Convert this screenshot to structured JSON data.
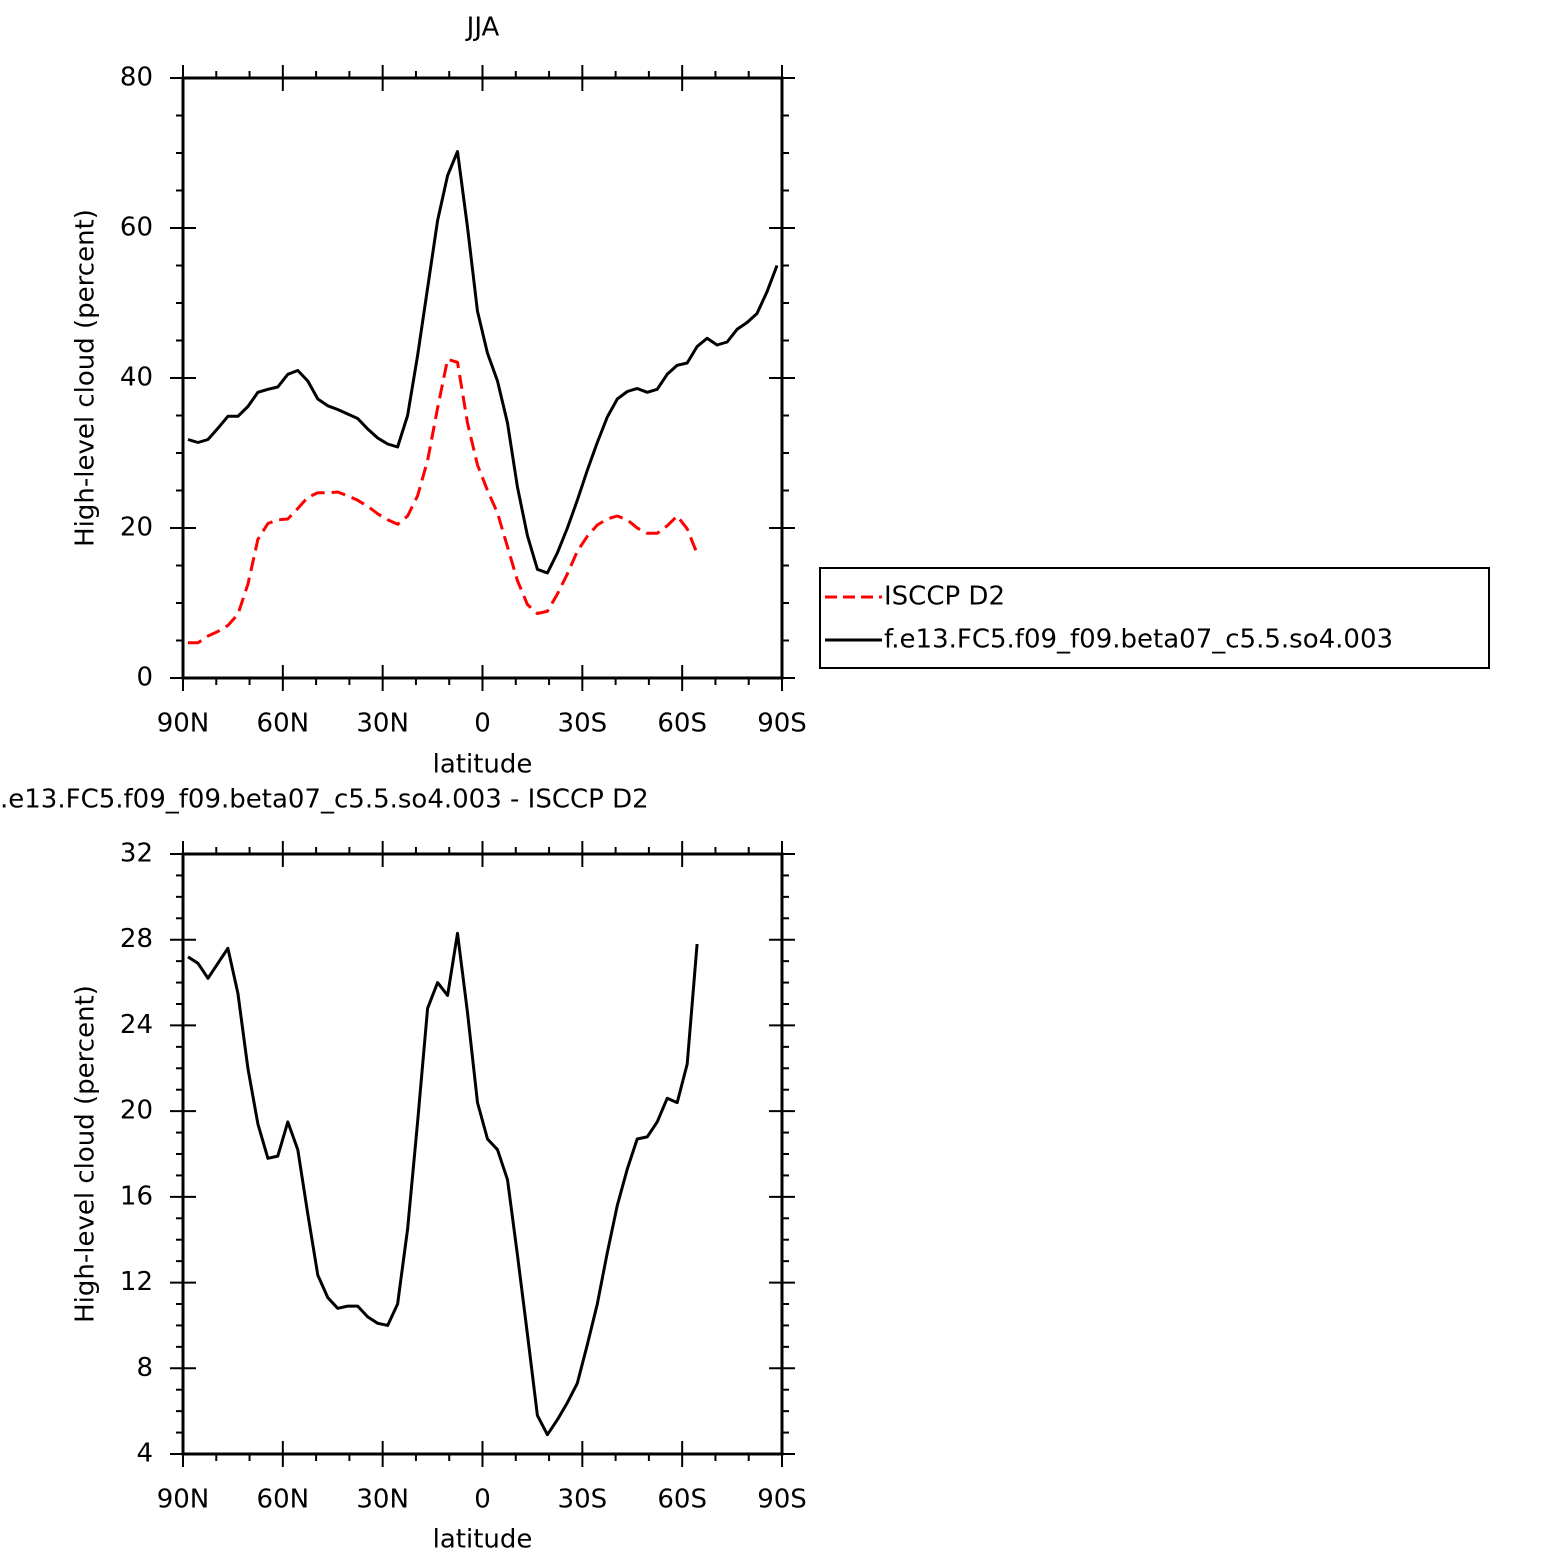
{
  "chart_data": [
    {
      "type": "line",
      "title": "JJA",
      "xlabel": "latitude",
      "ylabel": "High-level cloud (percent)",
      "x": [
        88.5,
        85.5,
        82.5,
        79.5,
        76.5,
        73.5,
        70.5,
        67.5,
        64.5,
        61.5,
        58.5,
        55.5,
        52.5,
        49.5,
        46.5,
        43.5,
        40.5,
        37.5,
        34.5,
        31.5,
        28.5,
        25.5,
        22.5,
        19.5,
        16.5,
        13.5,
        10.5,
        7.5,
        4.5,
        1.5,
        -1.5,
        -4.5,
        -7.5,
        -10.5,
        -13.5,
        -16.5,
        -19.5,
        -22.5,
        -25.5,
        -28.5,
        -31.5,
        -34.5,
        -37.5,
        -40.5,
        -43.5,
        -46.5,
        -49.5,
        -52.5,
        -55.5,
        -58.5,
        -61.5,
        -64.5,
        -67.5,
        -70.5,
        -73.5,
        -76.5,
        -79.5,
        -82.5,
        -85.5,
        -88.5
      ],
      "series": [
        {
          "name": "ISCCP D2",
          "color": "#ff0000",
          "dash": true,
          "values": [
            4.7,
            4.7,
            5.6,
            6.2,
            7.0,
            8.5,
            12.5,
            18.5,
            20.6,
            21.1,
            21.2,
            22.6,
            24.1,
            24.7,
            24.7,
            24.8,
            24.3,
            23.7,
            22.9,
            21.9,
            21.1,
            20.5,
            21.6,
            24.3,
            29,
            36,
            42.5,
            42.1,
            34,
            28.4,
            25,
            22,
            17.5,
            13,
            9.8,
            8.6,
            8.9,
            11.2,
            13.9,
            16.9,
            18.9,
            20.4,
            21.2,
            21.6,
            21.1,
            20,
            19.3,
            19.3,
            20.3,
            21.6,
            19.9,
            16.6,
            null,
            null,
            null,
            null,
            null,
            null,
            null,
            null
          ]
        },
        {
          "name": "f.e13.FC5.f09_f09.beta07_c5.5.so4.003",
          "color": "#000000",
          "dash": false,
          "values": [
            31.8,
            31.4,
            31.8,
            33.3,
            34.9,
            34.9,
            36.2,
            38.1,
            38.5,
            38.8,
            40.5,
            41.0,
            39.6,
            37.2,
            36.3,
            35.8,
            35.2,
            34.6,
            33.2,
            32.0,
            31.2,
            30.8,
            35,
            43,
            52,
            61,
            67,
            70.2,
            60.1,
            48.9,
            43.3,
            39.6,
            34,
            25.5,
            19,
            14.5,
            14,
            16.7,
            20,
            23.7,
            27.7,
            31.4,
            34.8,
            37.2,
            38.2,
            38.6,
            38.1,
            38.5,
            40.5,
            41.7,
            42,
            44.2,
            45.3,
            44.4,
            44.8,
            46.5,
            47.4,
            48.6,
            51.5,
            55
          ]
        }
      ],
      "xlim": [
        90,
        -90
      ],
      "xticks": [
        {
          "value": 90,
          "label": "90N"
        },
        {
          "value": 60,
          "label": "60N"
        },
        {
          "value": 30,
          "label": "30N"
        },
        0,
        {
          "value": -30,
          "label": "30S"
        },
        {
          "value": -60,
          "label": "60S"
        },
        {
          "value": -90,
          "label": "90S"
        }
      ],
      "ylim": [
        0,
        80
      ],
      "yticks": [
        0,
        20,
        40,
        60,
        80
      ],
      "legend": "right"
    },
    {
      "type": "line",
      "title": ".e13.FC5.f09_f09.beta07_c5.5.so4.003 - ISCCP D2",
      "xlabel": "latitude",
      "ylabel": "High-level cloud (percent)",
      "x": [
        88.5,
        85.5,
        82.5,
        79.5,
        76.5,
        73.5,
        70.5,
        67.5,
        64.5,
        61.5,
        58.5,
        55.5,
        52.5,
        49.5,
        46.5,
        43.5,
        40.5,
        37.5,
        34.5,
        31.5,
        28.5,
        25.5,
        22.5,
        19.5,
        16.5,
        13.5,
        10.5,
        7.5,
        4.5,
        1.5,
        -1.5,
        -4.5,
        -7.5,
        -10.5,
        -13.5,
        -16.5,
        -19.5,
        -22.5,
        -25.5,
        -28.5,
        -31.5,
        -34.5,
        -37.5,
        -40.5,
        -43.5,
        -46.5,
        -49.5,
        -52.5,
        -55.5,
        -58.5,
        -61.5,
        -64.5,
        -67.5,
        -70.5,
        -73.5,
        -76.5,
        -79.5,
        -82.5,
        -85.5,
        -88.5
      ],
      "series": [
        {
          "color": "#000000",
          "dash": false,
          "values": [
            27.2,
            26.9,
            26.2,
            26.9,
            27.6,
            25.5,
            22,
            19.4,
            17.8,
            17.9,
            19.5,
            18.2,
            15.2,
            12.35,
            11.3,
            10.8,
            10.9,
            10.9,
            10.4,
            10.1,
            10,
            11,
            14.5,
            19.5,
            24.8,
            26,
            25.4,
            28.3,
            24.6,
            20.4,
            18.7,
            18.2,
            16.8,
            13.3,
            9.6,
            5.8,
            4.9,
            5.6,
            6.4,
            7.3,
            9.1,
            11,
            13.4,
            15.6,
            17.3,
            18.7,
            18.8,
            19.5,
            20.6,
            20.4,
            22.2,
            27.8,
            null,
            null,
            null,
            null,
            null,
            null,
            null,
            null
          ]
        }
      ],
      "xlim": [
        90,
        -90
      ],
      "xticks": [
        {
          "value": 90,
          "label": "90N"
        },
        {
          "value": 60,
          "label": "60N"
        },
        {
          "value": 30,
          "label": "30N"
        },
        0,
        {
          "value": -30,
          "label": "30S"
        },
        {
          "value": -60,
          "label": "60S"
        },
        {
          "value": -90,
          "label": "90S"
        }
      ],
      "ylim": [
        4,
        32
      ],
      "yticks": [
        4,
        8,
        12,
        16,
        20,
        24,
        28,
        32
      ]
    }
  ]
}
